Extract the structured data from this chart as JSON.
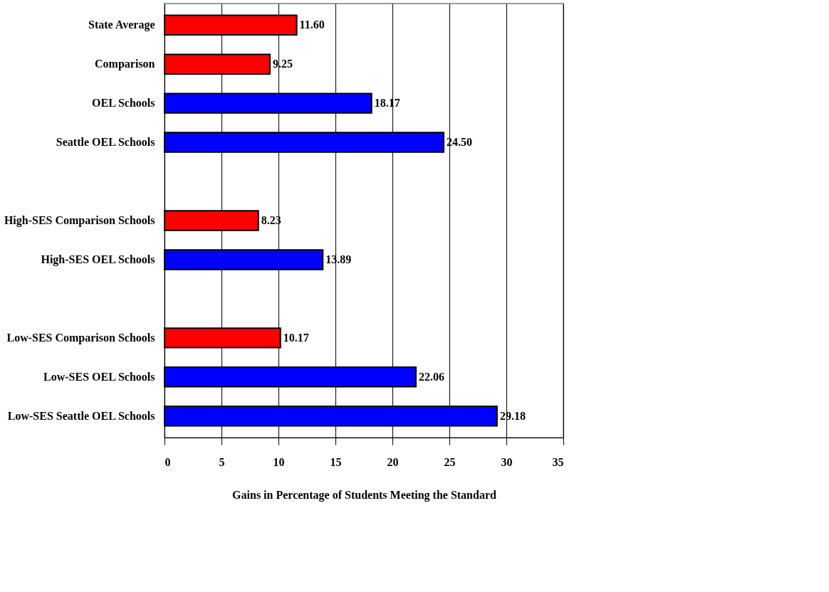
{
  "chart_data": {
    "type": "bar",
    "orientation": "horizontal",
    "xlabel": "Gains in Percentage of Students Meeting the Standard",
    "categories": [
      "State Average",
      "Comparison",
      "OEL Schools",
      "Seattle OEL Schools",
      null,
      "High-SES Comparison Schools",
      "High-SES OEL Schools",
      null,
      "Low-SES Comparison Schools",
      "Low-SES OEL Schools",
      "Low-SES Seattle OEL Schools"
    ],
    "values": [
      11.6,
      9.25,
      18.17,
      24.5,
      null,
      8.23,
      13.89,
      null,
      10.17,
      22.06,
      29.18
    ],
    "colors": [
      "#ff0000",
      "#ff0000",
      "#0000ff",
      "#0000ff",
      null,
      "#ff0000",
      "#0000ff",
      null,
      "#ff0000",
      "#0000ff",
      "#0000ff"
    ],
    "value_labels": [
      "11.60",
      "9.25",
      "18.17",
      "24.50",
      null,
      "8.23",
      "13.89",
      null,
      "10.17",
      "22.06",
      "29.18"
    ],
    "xlim": [
      0,
      35
    ],
    "xticks": [
      0,
      5,
      10,
      15,
      20,
      25,
      30,
      35
    ],
    "grid": "x"
  }
}
